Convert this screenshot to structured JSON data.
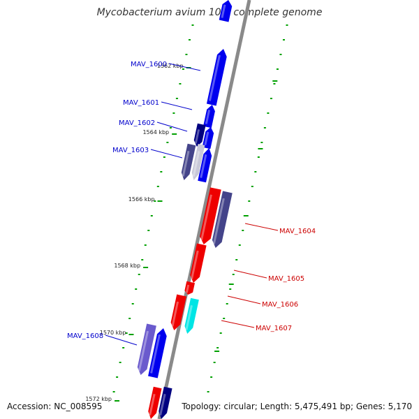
{
  "title": "Mycobacterium avium 104, complete genome",
  "footer": {
    "accession": "Accession: NC_008595",
    "summary": "Topology: circular; Length: 5,475,491 bp; Genes: 5,170"
  },
  "colors": {
    "forward": "#0000ee",
    "reverse": "#ee0000",
    "dark_blue": "#000080",
    "purple": "#44448a",
    "lavender": "#6a5acd",
    "cyan": "#00e5e5",
    "tick": "#00a000",
    "backbone": "#8a8a8a",
    "label_forward": "#0000cc",
    "label_reverse": "#cc0000"
  },
  "scale_labels": [
    {
      "id": "kbp-1562",
      "text": "1562 kbp"
    },
    {
      "id": "kbp-1564",
      "text": "1564 kbp"
    },
    {
      "id": "kbp-1566",
      "text": "1566 kbp"
    },
    {
      "id": "kbp-1568",
      "text": "1568 kbp"
    },
    {
      "id": "kbp-1570",
      "text": "1570 kbp"
    },
    {
      "id": "kbp-1572",
      "text": "1572 kbp"
    }
  ],
  "gene_labels": [
    {
      "id": "MAV_1600",
      "text": "MAV_1600",
      "strand": "forward"
    },
    {
      "id": "MAV_1601",
      "text": "MAV_1601",
      "strand": "forward"
    },
    {
      "id": "MAV_1602",
      "text": "MAV_1602",
      "strand": "forward"
    },
    {
      "id": "MAV_1603",
      "text": "MAV_1603",
      "strand": "forward"
    },
    {
      "id": "MAV_1604",
      "text": "MAV_1604",
      "strand": "reverse"
    },
    {
      "id": "MAV_1605",
      "text": "MAV_1605",
      "strand": "reverse"
    },
    {
      "id": "MAV_1606",
      "text": "MAV_1606",
      "strand": "reverse"
    },
    {
      "id": "MAV_1607",
      "text": "MAV_1607",
      "strand": "reverse"
    },
    {
      "id": "MAV_1608",
      "text": "MAV_1608",
      "strand": "forward"
    }
  ]
}
